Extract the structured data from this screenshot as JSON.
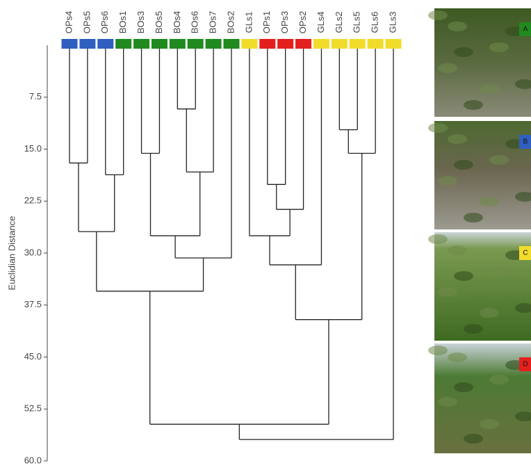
{
  "chart_data": {
    "type": "dendrogram",
    "y_label": "Euclidian Distance",
    "ylim": [
      0,
      60
    ],
    "yticks": [
      7.5,
      {
        "value": 15,
        "label": "15.0"
      },
      22.5,
      {
        "value": 30,
        "label": "30.0"
      },
      37.5,
      {
        "value": 45,
        "label": "45.0"
      },
      52.5,
      {
        "value": 60,
        "label": "60.0"
      }
    ],
    "leaves": [
      {
        "name": "OPs4",
        "color": "#2f5fbf"
      },
      {
        "name": "OPs5",
        "color": "#2f5fbf"
      },
      {
        "name": "OPs6",
        "color": "#2f5fbf"
      },
      {
        "name": "BOs1",
        "color": "#218a1f"
      },
      {
        "name": "BOs3",
        "color": "#218a1f"
      },
      {
        "name": "BOs5",
        "color": "#218a1f"
      },
      {
        "name": "BOs4",
        "color": "#218a1f"
      },
      {
        "name": "BOs6",
        "color": "#218a1f"
      },
      {
        "name": "BOs7",
        "color": "#218a1f"
      },
      {
        "name": "BOs2",
        "color": "#218a1f"
      },
      {
        "name": "GLs1",
        "color": "#f2dc2b"
      },
      {
        "name": "OPs1",
        "color": "#e3201e"
      },
      {
        "name": "OPs3",
        "color": "#e3201e"
      },
      {
        "name": "OPs2",
        "color": "#e3201e"
      },
      {
        "name": "GLs4",
        "color": "#f2dc2b"
      },
      {
        "name": "GLs2",
        "color": "#f2dc2b"
      },
      {
        "name": "GLs5",
        "color": "#f2dc2b"
      },
      {
        "name": "GLs6",
        "color": "#f2dc2b"
      },
      {
        "name": "GLs3",
        "color": "#f2dc2b"
      }
    ],
    "merges": [
      {
        "left": 0,
        "right": 1,
        "height": 17.0
      },
      {
        "left": 2,
        "right": 3,
        "height": 18.7
      },
      {
        "left": 19,
        "right": 20,
        "height": 26.9
      },
      {
        "left": 4,
        "right": 5,
        "height": 15.6
      },
      {
        "left": 6,
        "right": 7,
        "height": 9.2
      },
      {
        "left": 23,
        "right": 8,
        "height": 18.3
      },
      {
        "left": 22,
        "right": 24,
        "height": 27.5
      },
      {
        "left": 25,
        "right": 9,
        "height": 30.7
      },
      {
        "left": 21,
        "right": 26,
        "height": 35.5
      },
      {
        "left": 11,
        "right": 12,
        "height": 20.1
      },
      {
        "left": 28,
        "right": 13,
        "height": 23.7
      },
      {
        "left": 10,
        "right": 29,
        "height": 27.5
      },
      {
        "left": 30,
        "right": 14,
        "height": 31.7
      },
      {
        "left": 15,
        "right": 16,
        "height": 12.2
      },
      {
        "left": 32,
        "right": 17,
        "height": 15.6
      },
      {
        "left": 31,
        "right": 33,
        "height": 39.6
      },
      {
        "left": 27,
        "right": 34,
        "height": 54.7
      },
      {
        "left": 35,
        "right": 18,
        "height": 56.9
      }
    ],
    "panels": [
      {
        "label": "A",
        "color": "#218a1f"
      },
      {
        "label": "B",
        "color": "#2f5fbf"
      },
      {
        "label": "C",
        "color": "#f2dc2b"
      },
      {
        "label": "D",
        "color": "#e3201e"
      }
    ]
  }
}
